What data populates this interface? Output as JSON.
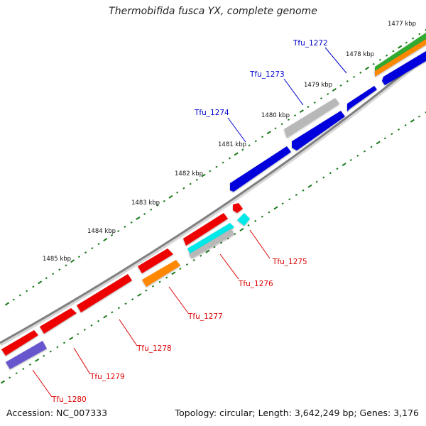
{
  "title": "Thermobifida fusca YX, complete genome",
  "footer": {
    "accession": "Accession: NC_007333",
    "stats": "Topology: circular; Length: 3,642,249 bp; Genes: 3,176"
  },
  "colors": {
    "backbone": "#808080",
    "tick": "#1a7a1a",
    "label_upper": "#0000cc",
    "label_lower": "#dd0000",
    "green": "#33aa33",
    "orange": "#ff8800",
    "blue": "#0000dd",
    "gray": "#b8b8b8",
    "red": "#ee0000",
    "cyan": "#00e8e8",
    "purple": "#6655cc"
  },
  "kbp_labels": [
    "1477 kbp",
    "1478 kbp",
    "1479 kbp",
    "1480 kbp",
    "1481 kbp",
    "1482 kbp",
    "1483 kbp",
    "1484 kbp",
    "1485 kbp"
  ],
  "upper_genes": [
    "Tfu_1272",
    "Tfu_1273",
    "Tfu_1274"
  ],
  "lower_genes": [
    "Tfu_1275",
    "Tfu_1276",
    "Tfu_1277",
    "Tfu_1278",
    "Tfu_1279",
    "Tfu_1280"
  ]
}
